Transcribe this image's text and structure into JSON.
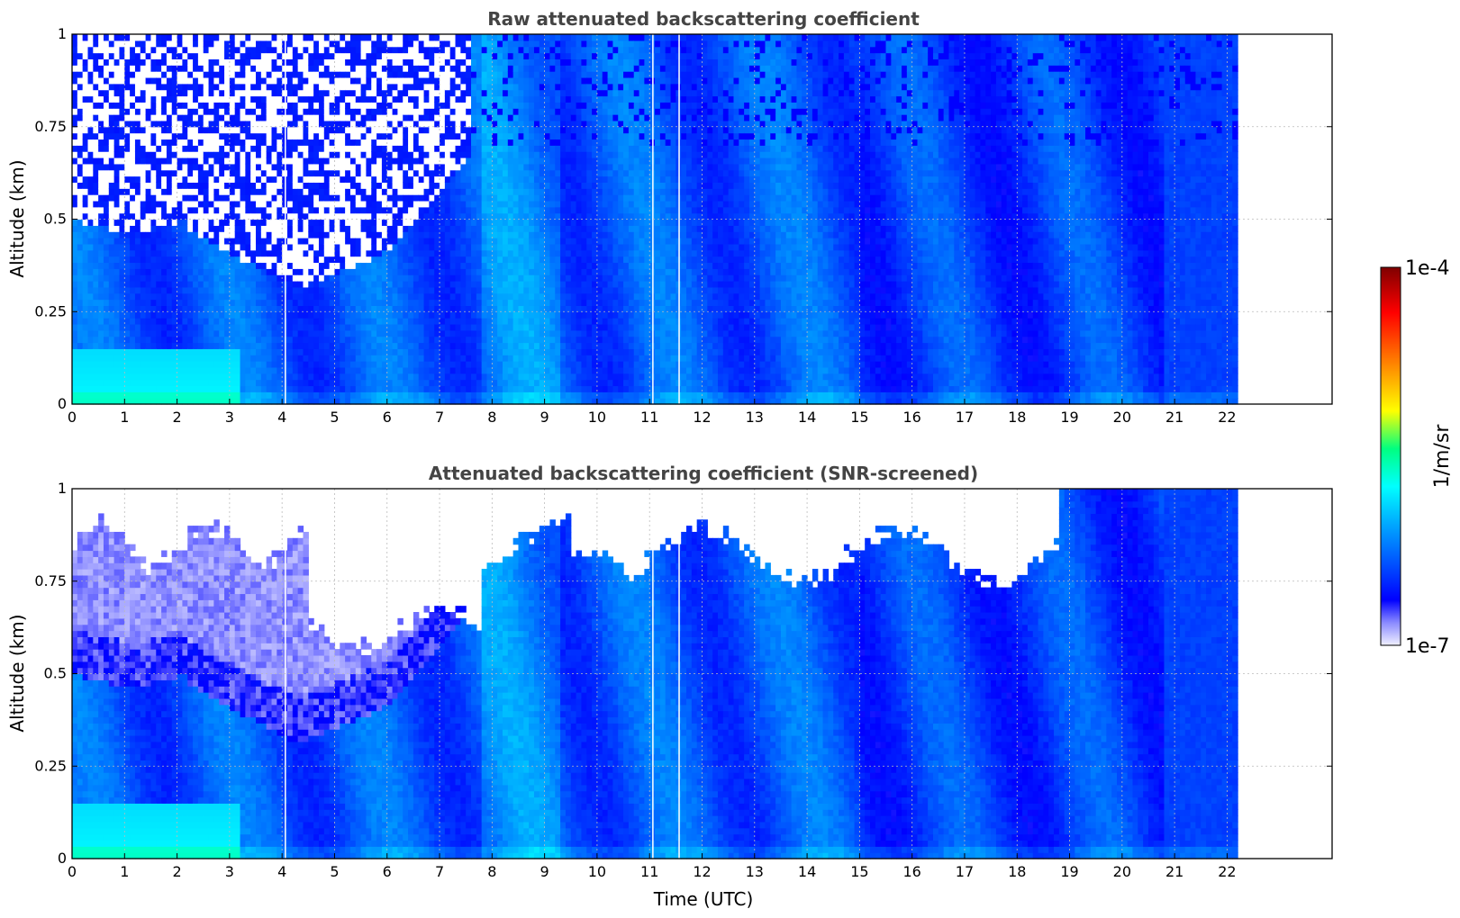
{
  "chart_data": [
    {
      "type": "heatmap",
      "title": "Raw attenuated backscattering coefficient",
      "xlabel": "",
      "ylabel": "Altitude (km)",
      "xlim": [
        0,
        24
      ],
      "ylim": [
        0,
        1
      ],
      "x_ticks": [
        "0",
        "1",
        "2",
        "3",
        "4",
        "5",
        "6",
        "7",
        "8",
        "9",
        "10",
        "11",
        "12",
        "13",
        "14",
        "15",
        "16",
        "17",
        "18",
        "19",
        "20",
        "21",
        "22"
      ],
      "y_ticks": [
        "0",
        "0.25",
        "0.5",
        "0.75",
        "1"
      ],
      "data_time_range": [
        0,
        22.2
      ],
      "screened": false,
      "grid": true
    },
    {
      "type": "heatmap",
      "title": "Attenuated backscattering coefficient (SNR-screened)",
      "xlabel": "Time (UTC)",
      "ylabel": "Altitude (km)",
      "xlim": [
        0,
        24
      ],
      "ylim": [
        0,
        1
      ],
      "x_ticks": [
        "0",
        "1",
        "2",
        "3",
        "4",
        "5",
        "6",
        "7",
        "8",
        "9",
        "10",
        "11",
        "12",
        "13",
        "14",
        "15",
        "16",
        "17",
        "18",
        "19",
        "20",
        "21",
        "22"
      ],
      "y_ticks": [
        "0",
        "0.25",
        "0.5",
        "0.75",
        "1"
      ],
      "data_time_range": [
        0,
        22.2
      ],
      "screened": true,
      "grid": true
    }
  ],
  "colorbar": {
    "label": "1/m/sr",
    "max_label": "1e-4",
    "min_label": "1e-7",
    "colors": [
      "#f0f0ff",
      "#8a8aff",
      "#0000ff",
      "#0055ff",
      "#00a8ff",
      "#00ffff",
      "#00ff80",
      "#ffff00",
      "#ff7f00",
      "#ff0000",
      "#800000"
    ]
  }
}
